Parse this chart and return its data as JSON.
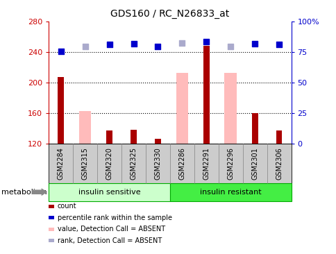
{
  "title": "GDS160 / RC_N26833_at",
  "samples": [
    "GSM2284",
    "GSM2315",
    "GSM2320",
    "GSM2325",
    "GSM2330",
    "GSM2286",
    "GSM2291",
    "GSM2296",
    "GSM2301",
    "GSM2306"
  ],
  "count_values": [
    207,
    null,
    137,
    138,
    126,
    null,
    248,
    null,
    160,
    137
  ],
  "absent_value_bars": [
    null,
    163,
    null,
    null,
    null,
    213,
    null,
    213,
    null,
    null
  ],
  "rank_blue_dots": [
    241,
    null,
    250,
    251,
    247,
    null,
    254,
    null,
    251,
    250
  ],
  "absent_rank_dots": [
    null,
    247,
    null,
    null,
    null,
    252,
    null,
    247,
    null,
    null
  ],
  "ylim": [
    120,
    280
  ],
  "yticks": [
    120,
    160,
    200,
    240,
    280
  ],
  "right_ytick_positions": [
    120,
    160,
    200,
    240,
    280
  ],
  "right_ytick_labels": [
    "0",
    "25",
    "50",
    "75",
    "100%"
  ],
  "dotted_lines": [
    160,
    200,
    240
  ],
  "bar_color_dark": "#aa0000",
  "bar_color_light": "#ffbbbb",
  "dot_color_dark": "#0000cc",
  "dot_color_light": "#aaaacc",
  "group_is_color": "#ccffcc",
  "group_ir_color": "#44ee44",
  "group_border_color": "#00aa00",
  "tick_label_bg": "#cccccc",
  "ylabel_color": "#cc0000",
  "right_ylabel_color": "#0000cc",
  "legend_items": [
    {
      "label": "count",
      "color": "#aa0000"
    },
    {
      "label": "percentile rank within the sample",
      "color": "#0000cc"
    },
    {
      "label": "value, Detection Call = ABSENT",
      "color": "#ffbbbb"
    },
    {
      "label": "rank, Detection Call = ABSENT",
      "color": "#aaaacc"
    }
  ],
  "metabolism_label": "metabolism",
  "n_sensitive": 5,
  "n_resistant": 5
}
